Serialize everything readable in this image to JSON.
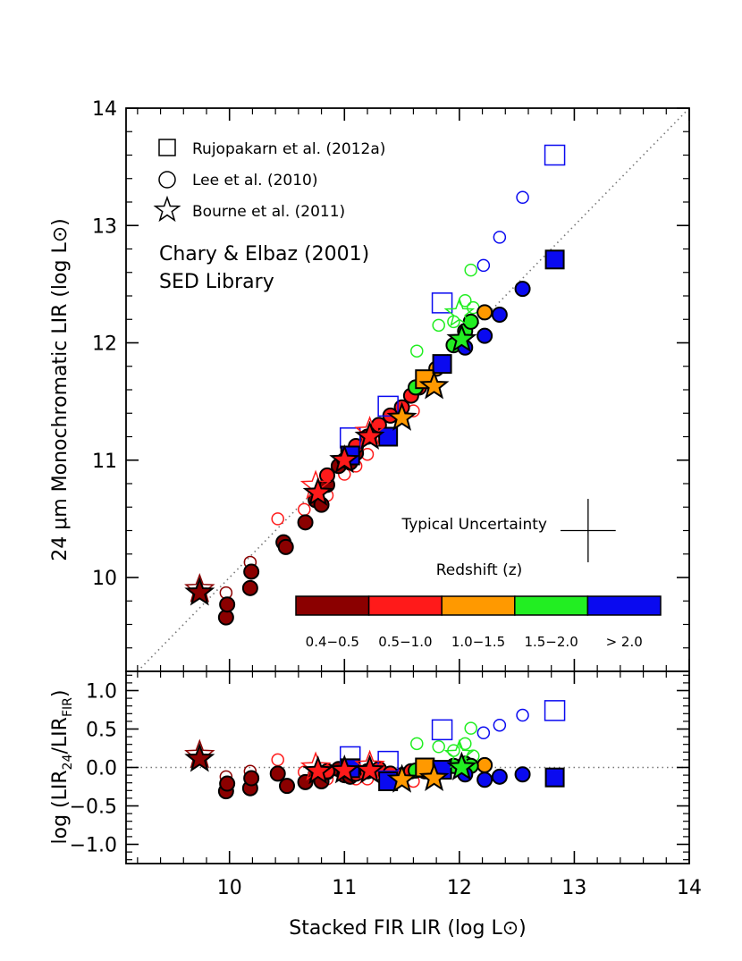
{
  "colors": {
    "z_0.4_0.5": "#8b0000",
    "z_0.5_1.0": "#ff1a1a",
    "z_1.0_1.5": "#ff9900",
    "z_1.5_2.0": "#22ee22",
    "z_gt_2.0": "#0a0af0",
    "one_to_one_line": "#777777"
  },
  "chart_data": [
    {
      "type": "scatter",
      "panel": "top",
      "xlabel": "",
      "ylabel": "24 μm Monochromatic LIR (log L⊙)",
      "xlim": [
        9.1,
        14
      ],
      "ylim": [
        9.2,
        14
      ],
      "x_ticks": [
        10,
        11,
        12,
        13,
        14
      ],
      "y_ticks": [
        10,
        11,
        12,
        13,
        14
      ],
      "y_tick_labels": [
        "10",
        "11",
        "12",
        "13",
        "14"
      ],
      "one_to_one_line": true,
      "legend_placement": "top-left",
      "legend": [
        {
          "marker": "square",
          "label": "Rujopakarn et al. (2012a)"
        },
        {
          "marker": "circle",
          "label": "Lee et al. (2010)"
        },
        {
          "marker": "star",
          "label": "Bourne et al. (2011)"
        }
      ],
      "annotation": {
        "line1": "Chary & Elbaz (2001)",
        "line2": "SED Library"
      },
      "uncertainty_label": "Typical Uncertainty",
      "uncertainty": {
        "x": 13.12,
        "y": 10.4,
        "dx": 0.24,
        "dy": 0.27
      },
      "colorbar_title": "Redshift (z)",
      "colorbar_bins": [
        {
          "label": "0.4−0.5",
          "color": "#8b0000"
        },
        {
          "label": "0.5−1.0",
          "color": "#ff1a1a"
        },
        {
          "label": "1.0−1.5",
          "color": "#ff9900"
        },
        {
          "label": "1.5−2.0",
          "color": "#22ee22"
        },
        {
          "label": "> 2.0",
          "color": "#0a0af0"
        }
      ],
      "series": [
        {
          "marker": "circle",
          "filled": false,
          "color": "#8b0000",
          "points": [
            [
              9.97,
              9.87
            ],
            [
              10.18,
              10.13
            ]
          ]
        },
        {
          "marker": "circle",
          "filled": true,
          "color": "#8b0000",
          "points": [
            [
              9.97,
              9.66
            ],
            [
              9.98,
              9.77
            ],
            [
              10.18,
              9.91
            ],
            [
              10.19,
              10.05
            ],
            [
              10.47,
              10.3
            ],
            [
              10.49,
              10.26
            ],
            [
              10.66,
              10.47
            ],
            [
              10.75,
              10.66
            ],
            [
              10.8,
              10.62
            ],
            [
              10.85,
              10.79
            ],
            [
              10.95,
              10.95
            ],
            [
              11.0,
              11.0
            ],
            [
              11.05,
              10.98
            ],
            [
              11.1,
              11.06
            ]
          ]
        },
        {
          "marker": "circle",
          "filled": false,
          "color": "#ff1a1a",
          "points": [
            [
              10.42,
              10.5
            ],
            [
              10.65,
              10.58
            ],
            [
              10.85,
              10.7
            ],
            [
              11.0,
              10.88
            ],
            [
              11.1,
              10.95
            ],
            [
              11.2,
              11.05
            ],
            [
              11.35,
              11.2
            ],
            [
              11.6,
              11.42
            ]
          ]
        },
        {
          "marker": "circle",
          "filled": true,
          "color": "#ff1a1a",
          "points": [
            [
              10.85,
              10.87
            ],
            [
              11.1,
              11.12
            ],
            [
              11.2,
              11.2
            ],
            [
              11.3,
              11.3
            ],
            [
              11.4,
              11.38
            ],
            [
              11.5,
              11.45
            ],
            [
              11.58,
              11.55
            ],
            [
              11.65,
              11.62
            ]
          ]
        },
        {
          "marker": "circle",
          "filled": true,
          "color": "#ff9900",
          "points": [
            [
              11.7,
              11.68
            ],
            [
              11.8,
              11.78
            ],
            [
              12.22,
              12.26
            ]
          ]
        },
        {
          "marker": "circle",
          "filled": false,
          "color": "#22ee22",
          "points": [
            [
              11.63,
              11.93
            ],
            [
              11.82,
              12.15
            ],
            [
              11.95,
              12.18
            ],
            [
              12.05,
              12.36
            ],
            [
              12.1,
              12.62
            ],
            [
              12.12,
              12.3
            ]
          ]
        },
        {
          "marker": "circle",
          "filled": true,
          "color": "#22ee22",
          "points": [
            [
              11.62,
              11.62
            ],
            [
              11.95,
              11.98
            ],
            [
              12.05,
              12.1
            ],
            [
              12.1,
              12.18
            ]
          ]
        },
        {
          "marker": "circle",
          "filled": false,
          "color": "#0a0af0",
          "points": [
            [
              12.21,
              12.66
            ],
            [
              12.35,
              12.9
            ],
            [
              12.55,
              13.24
            ]
          ]
        },
        {
          "marker": "circle",
          "filled": true,
          "color": "#0a0af0",
          "points": [
            [
              12.05,
              11.96
            ],
            [
              12.22,
              12.06
            ],
            [
              12.35,
              12.24
            ],
            [
              12.55,
              12.46
            ]
          ]
        },
        {
          "marker": "square",
          "filled": false,
          "color": "#0a0af0",
          "points": [
            [
              11.05,
              11.19
            ],
            [
              11.38,
              11.46
            ],
            [
              11.85,
              12.34
            ],
            [
              12.83,
              13.6
            ]
          ]
        },
        {
          "marker": "square",
          "filled": true,
          "color": "#ff9900",
          "points": [
            [
              11.7,
              11.69
            ]
          ]
        },
        {
          "marker": "square",
          "filled": true,
          "color": "#0a0af0",
          "points": [
            [
              11.05,
              11.04
            ],
            [
              11.38,
              11.2
            ],
            [
              11.85,
              11.82
            ],
            [
              12.83,
              12.71
            ]
          ]
        },
        {
          "marker": "star",
          "filled": false,
          "color": "#8b0000",
          "points": [
            [
              9.74,
              9.9
            ]
          ]
        },
        {
          "marker": "star",
          "filled": true,
          "color": "#8b0000",
          "points": [
            [
              9.74,
              9.87
            ]
          ]
        },
        {
          "marker": "star",
          "filled": false,
          "color": "#ff1a1a",
          "points": [
            [
              10.75,
              10.78
            ],
            [
              11.22,
              11.24
            ]
          ]
        },
        {
          "marker": "star",
          "filled": true,
          "color": "#ff1a1a",
          "points": [
            [
              10.77,
              10.72
            ],
            [
              11.0,
              11.0
            ],
            [
              11.22,
              11.2
            ]
          ]
        },
        {
          "marker": "star",
          "filled": true,
          "color": "#ff9900",
          "points": [
            [
              11.5,
              11.36
            ],
            [
              11.78,
              11.63
            ]
          ]
        },
        {
          "marker": "star",
          "filled": false,
          "color": "#22ee22",
          "points": [
            [
              12.0,
              12.25
            ]
          ]
        },
        {
          "marker": "star",
          "filled": true,
          "color": "#22ee22",
          "points": [
            [
              12.02,
              12.03
            ]
          ]
        }
      ]
    },
    {
      "type": "scatter",
      "panel": "bottom",
      "xlabel": "Stacked FIR LIR (log L⊙)",
      "ylabel": "log (LIR24/LIRFIR)",
      "xlim": [
        9.1,
        14
      ],
      "ylim": [
        -1.25,
        1.25
      ],
      "x_ticks": [
        10,
        11,
        12,
        13,
        14
      ],
      "x_tick_labels": [
        "10",
        "11",
        "12",
        "13",
        "14"
      ],
      "y_ticks": [
        -1.0,
        -0.5,
        0.0,
        0.5,
        1.0
      ],
      "y_tick_labels": [
        "−1.0",
        "−0.5",
        "0.0",
        "0.5",
        "1.0"
      ],
      "zero_line": true,
      "series": [
        {
          "marker": "circle",
          "filled": false,
          "color": "#8b0000",
          "points": [
            [
              9.97,
              -0.12
            ],
            [
              10.18,
              -0.05
            ]
          ]
        },
        {
          "marker": "circle",
          "filled": true,
          "color": "#8b0000",
          "points": [
            [
              9.97,
              -0.31
            ],
            [
              9.98,
              -0.21
            ],
            [
              10.18,
              -0.27
            ],
            [
              10.19,
              -0.14
            ],
            [
              10.42,
              -0.08
            ],
            [
              10.5,
              -0.24
            ],
            [
              10.66,
              -0.19
            ],
            [
              10.75,
              -0.09
            ],
            [
              10.8,
              -0.18
            ],
            [
              10.85,
              -0.06
            ],
            [
              10.95,
              -0.02
            ],
            [
              11.0,
              -0.1
            ],
            [
              11.05,
              -0.12
            ]
          ]
        },
        {
          "marker": "circle",
          "filled": false,
          "color": "#ff1a1a",
          "points": [
            [
              10.42,
              0.1
            ],
            [
              10.65,
              -0.06
            ],
            [
              10.85,
              -0.15
            ],
            [
              11.0,
              -0.12
            ],
            [
              11.1,
              -0.15
            ],
            [
              11.2,
              -0.15
            ],
            [
              11.35,
              -0.15
            ],
            [
              11.6,
              -0.18
            ]
          ]
        },
        {
          "marker": "circle",
          "filled": true,
          "color": "#ff1a1a",
          "points": [
            [
              10.85,
              -0.05
            ],
            [
              11.1,
              -0.08
            ],
            [
              11.2,
              -0.05
            ],
            [
              11.3,
              -0.02
            ],
            [
              11.4,
              -0.08
            ],
            [
              11.5,
              -0.1
            ],
            [
              11.58,
              -0.05
            ],
            [
              11.65,
              -0.03
            ]
          ]
        },
        {
          "marker": "circle",
          "filled": true,
          "color": "#ff9900",
          "points": [
            [
              11.7,
              -0.05
            ],
            [
              11.8,
              -0.06
            ],
            [
              12.22,
              0.03
            ]
          ]
        },
        {
          "marker": "circle",
          "filled": false,
          "color": "#22ee22",
          "points": [
            [
              11.63,
              0.31
            ],
            [
              11.82,
              0.27
            ],
            [
              11.95,
              0.22
            ],
            [
              12.05,
              0.31
            ],
            [
              12.1,
              0.51
            ],
            [
              12.12,
              0.15
            ]
          ]
        },
        {
          "marker": "circle",
          "filled": true,
          "color": "#22ee22",
          "points": [
            [
              11.62,
              -0.04
            ],
            [
              11.95,
              0.02
            ],
            [
              12.05,
              0.05
            ],
            [
              12.1,
              0.02
            ]
          ]
        },
        {
          "marker": "circle",
          "filled": false,
          "color": "#0a0af0",
          "points": [
            [
              12.21,
              0.45
            ],
            [
              12.35,
              0.55
            ],
            [
              12.55,
              0.68
            ]
          ]
        },
        {
          "marker": "circle",
          "filled": true,
          "color": "#0a0af0",
          "points": [
            [
              12.05,
              -0.09
            ],
            [
              12.22,
              -0.16
            ],
            [
              12.35,
              -0.12
            ],
            [
              12.55,
              -0.09
            ]
          ]
        },
        {
          "marker": "square",
          "filled": false,
          "color": "#0a0af0",
          "points": [
            [
              11.05,
              0.14
            ],
            [
              11.38,
              0.08
            ],
            [
              11.85,
              0.49
            ],
            [
              12.83,
              0.74
            ]
          ]
        },
        {
          "marker": "square",
          "filled": true,
          "color": "#ff9900",
          "points": [
            [
              11.7,
              0.0
            ]
          ]
        },
        {
          "marker": "square",
          "filled": true,
          "color": "#0a0af0",
          "points": [
            [
              11.05,
              -0.01
            ],
            [
              11.38,
              -0.18
            ],
            [
              11.85,
              -0.03
            ],
            [
              12.83,
              -0.13
            ]
          ]
        },
        {
          "marker": "star",
          "filled": false,
          "color": "#8b0000",
          "points": [
            [
              9.74,
              0.16
            ]
          ]
        },
        {
          "marker": "star",
          "filled": true,
          "color": "#8b0000",
          "points": [
            [
              9.74,
              0.11
            ]
          ]
        },
        {
          "marker": "star",
          "filled": false,
          "color": "#ff1a1a",
          "points": [
            [
              10.75,
              0.0
            ],
            [
              11.22,
              0.02
            ]
          ]
        },
        {
          "marker": "star",
          "filled": true,
          "color": "#ff1a1a",
          "points": [
            [
              10.77,
              -0.05
            ],
            [
              11.0,
              -0.04
            ],
            [
              11.22,
              -0.04
            ]
          ]
        },
        {
          "marker": "star",
          "filled": true,
          "color": "#ff9900",
          "points": [
            [
              11.5,
              -0.16
            ],
            [
              11.78,
              -0.14
            ]
          ]
        },
        {
          "marker": "star",
          "filled": false,
          "color": "#22ee22",
          "points": [
            [
              12.0,
              0.16
            ]
          ]
        },
        {
          "marker": "star",
          "filled": true,
          "color": "#22ee22",
          "points": [
            [
              12.02,
              0.0
            ]
          ]
        }
      ]
    }
  ]
}
